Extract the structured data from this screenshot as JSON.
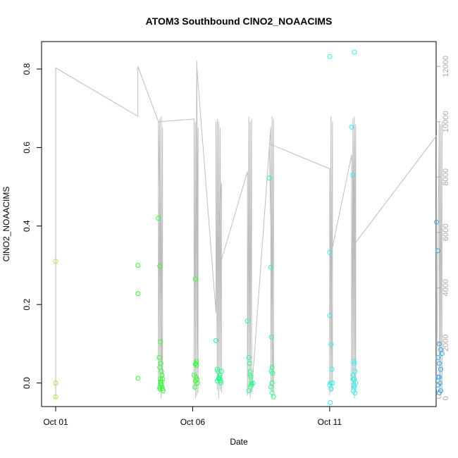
{
  "chart_data": {
    "type": "scatter",
    "title": "ATOM3 Southbound ClNO2_NOAACIMS",
    "xlabel": "Date",
    "ylabel": "ClNO2_NOAACIMS",
    "x_tick_labels": [
      "Oct 01",
      "Oct 06",
      "Oct 11"
    ],
    "x_tick_days": [
      1,
      6,
      11
    ],
    "xlim_days": [
      1,
      15.4
    ],
    "ylim": [
      -0.06,
      0.87
    ],
    "y_ticks": [
      0.0,
      0.2,
      0.4,
      0.6,
      0.8
    ],
    "y_tick_labels": [
      "0.0",
      "0.2",
      "0.4",
      "0.6",
      "0.8"
    ],
    "y2_label": "",
    "y2_ticks": [
      0,
      2000,
      4000,
      6000,
      8000,
      10000,
      12000
    ],
    "y2_tick_labels": [
      "0",
      "2000",
      "4000",
      "6000",
      "8000",
      "10000",
      "12000"
    ],
    "y2lim": [
      -300,
      12900
    ],
    "grid": false,
    "colors": {
      "altitude_line": "#bdbdbd",
      "point_colormap": [
        "#99ee33",
        "#33ff33",
        "#22ff88",
        "#22ffcc",
        "#33eeee",
        "#33aaee"
      ]
    },
    "series": [
      {
        "values_day": [
          1.0,
          1.0,
          1.0,
          4.0,
          4.0,
          4.0,
          4.75,
          4.8,
          4.82,
          4.84,
          4.86,
          4.88,
          4.9,
          4.78,
          4.8,
          4.82,
          4.84,
          4.86,
          4.88,
          4.9,
          4.92,
          4.8,
          4.85,
          4.88,
          4.8,
          4.84,
          6.05,
          6.1,
          6.1,
          6.12,
          6.14,
          6.16,
          6.18,
          6.08,
          6.1,
          6.12,
          6.14,
          6.85,
          6.9,
          6.92,
          6.95,
          6.97,
          7.0,
          7.02,
          7.05,
          6.9,
          6.95,
          7.0,
          7.03,
          8.0,
          8.05,
          8.08,
          8.1,
          8.12,
          8.14,
          8.05,
          8.1,
          8.15,
          8.2,
          8.1,
          8.8,
          8.85,
          8.88,
          8.9,
          8.92,
          8.85,
          8.9,
          8.95,
          8.87,
          8.9,
          11.0,
          11.0,
          11.05,
          11.08,
          11.1,
          11.0,
          11.02,
          11.05,
          11.03,
          11.8,
          11.85,
          11.88,
          11.9,
          11.92,
          11.85,
          11.9,
          11.95,
          11.88,
          11.9,
          11.87,
          11.92,
          11.85,
          14.9,
          14.95,
          15.0,
          15.05,
          15.1,
          14.95,
          15.0,
          15.05,
          14.95,
          15.0,
          15.02,
          14.95,
          15.05,
          15.0
        ],
        "values_y": [
          0.31,
          0.0,
          -0.035,
          0.3,
          0.228,
          0.012,
          0.42,
          0.298,
          0.105,
          0.05,
          0.03,
          0.02,
          0.01,
          0.065,
          0.04,
          0.01,
          0.0,
          -0.005,
          -0.01,
          -0.015,
          -0.02,
          -0.015,
          0.005,
          0.02,
          -0.01,
          0.0,
          0.02,
          0.265,
          0.048,
          0.05,
          0.055,
          0.01,
          0.0,
          -0.01,
          0.005,
          0.015,
          0.045,
          0.108,
          0.035,
          0.03,
          0.012,
          0.015,
          0.01,
          0.005,
          0.03,
          0.005,
          0.01,
          0.02,
          0.0,
          0.158,
          0.065,
          0.05,
          0.02,
          0.015,
          0.0,
          -0.02,
          -0.01,
          -0.005,
          0.0,
          0.03,
          0.522,
          0.295,
          0.117,
          0.04,
          0.025,
          -0.01,
          -0.025,
          -0.035,
          0.03,
          0.0,
          0.333,
          0.172,
          0.098,
          0.035,
          0.0,
          -0.005,
          -0.05,
          -0.015,
          0.0,
          0.652,
          0.53,
          0.055,
          0.05,
          0.03,
          0.02,
          0.01,
          0.0,
          -0.005,
          -0.01,
          -0.02,
          -0.025,
          0.01,
          0.41,
          0.337,
          0.1,
          0.085,
          0.075,
          0.065,
          0.05,
          0.035,
          0.015,
          0.015,
          0.0,
          -0.005,
          -0.02,
          -0.025
        ],
        "values_color_index": [
          0,
          0,
          0,
          1,
          1,
          1,
          1,
          1,
          1,
          1,
          1,
          1,
          1,
          1,
          1,
          1,
          1,
          1,
          1,
          1,
          1,
          1,
          1,
          1,
          1,
          1,
          1,
          1,
          1,
          1,
          1,
          1,
          1,
          1,
          1,
          1,
          1,
          2,
          2,
          2,
          2,
          2,
          2,
          2,
          2,
          2,
          2,
          2,
          2,
          2,
          2,
          2,
          2,
          2,
          2,
          2,
          2,
          2,
          2,
          2,
          2,
          2,
          2,
          2,
          2,
          2,
          2,
          2,
          2,
          2,
          4,
          4,
          4,
          4,
          4,
          4,
          4,
          4,
          4,
          4,
          4,
          4,
          4,
          4,
          4,
          4,
          4,
          4,
          4,
          4,
          4,
          4,
          5,
          5,
          5,
          5,
          5,
          5,
          5,
          5,
          5,
          5,
          5,
          5,
          5,
          5
        ]
      },
      {
        "extra_days": [
          11.0,
          11.9
        ],
        "extra_y": [
          0.832,
          0.843
        ],
        "extra_color_index": [
          4,
          4
        ]
      }
    ],
    "altitude_track": {
      "day": [
        1.0,
        1.0,
        4.0,
        4.0,
        4.75,
        4.75,
        4.8,
        4.8,
        4.85,
        4.85,
        4.9,
        4.9,
        4.75,
        6.05,
        6.05,
        6.1,
        6.1,
        6.15,
        6.15,
        6.2,
        6.2,
        6.15,
        6.85,
        6.85,
        6.9,
        6.9,
        6.95,
        6.95,
        7.0,
        7.0,
        7.05,
        7.05,
        6.9,
        6.95,
        7.0,
        7.05,
        8.0,
        8.0,
        8.05,
        8.05,
        8.1,
        8.1,
        8.15,
        8.15,
        8.85,
        8.85,
        8.9,
        8.9,
        8.95,
        8.95,
        8.9,
        8.8,
        11.0,
        11.0,
        11.05,
        11.05,
        11.1,
        11.1,
        11.05,
        11.8,
        11.8,
        11.85,
        11.85,
        11.9,
        11.9,
        11.95,
        11.95,
        11.9,
        11.85,
        14.9,
        14.9,
        15.0,
        15.0,
        15.05,
        15.05,
        15.1,
        15.1
      ],
      "alt": [
        0,
        11950,
        10200,
        12000,
        10000,
        300,
        10100,
        200,
        10200,
        0,
        9800,
        300,
        10000,
        10100,
        300,
        10000,
        0,
        12200,
        100,
        9800,
        200,
        12000,
        3100,
        10000,
        300,
        10100,
        0,
        10000,
        300,
        9800,
        200,
        7800,
        4900,
        5000,
        4900,
        5000,
        8200,
        100,
        10200,
        200,
        10000,
        0,
        10100,
        200,
        9800,
        300,
        10200,
        0,
        10100,
        200,
        3200,
        9200,
        8300,
        100,
        10200,
        200,
        10000,
        300,
        5200,
        8800,
        200,
        10100,
        300,
        10200,
        0,
        9900,
        300,
        10000,
        5500,
        9500,
        300,
        10000,
        200,
        9900,
        0,
        10000,
        200
      ]
    }
  }
}
